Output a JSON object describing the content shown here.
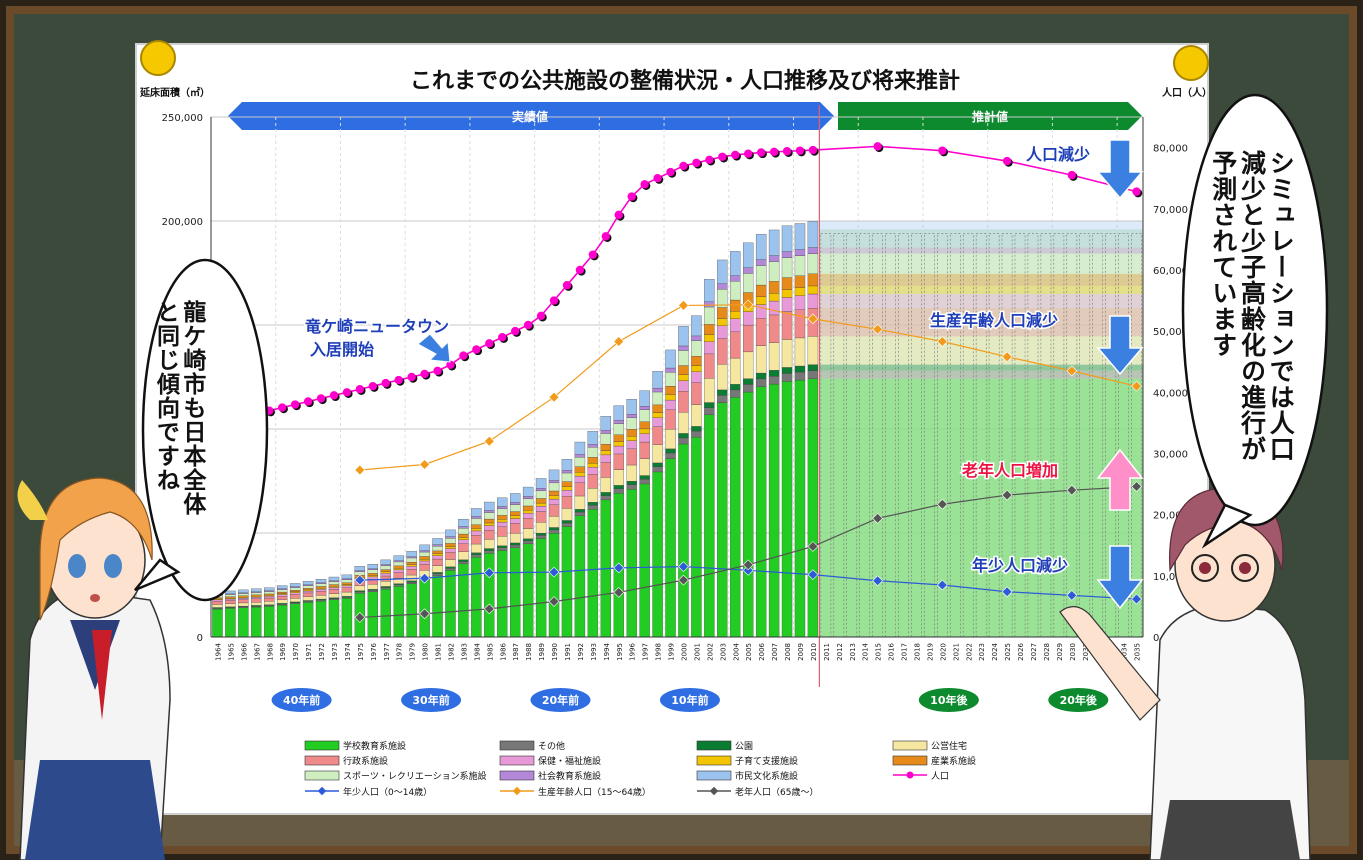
{
  "chart_data": {
    "type": "bar",
    "title": "これまでの公共施設の整備状況・人口推移及び将来推計",
    "y_left_label": "延床面積（㎡）",
    "y_right_label": "人口（人）",
    "y_left_ticks": [
      "0",
      "50,000",
      "100,000",
      "150,000",
      "200,000",
      "250,000"
    ],
    "y_right_ticks": [
      "0",
      "10,000",
      "20,000",
      "30,000",
      "40,000",
      "50,000",
      "60,000",
      "70,000",
      "80,000"
    ],
    "y_left_lim": [
      0,
      250000
    ],
    "y_right_lim": [
      0,
      85000
    ],
    "banner_actual": "実績値",
    "banner_forecast": "推計値",
    "categories": [
      "1964",
      "1965",
      "1966",
      "1967",
      "1968",
      "1969",
      "1970",
      "1971",
      "1972",
      "1973",
      "1974",
      "1975",
      "1976",
      "1977",
      "1978",
      "1979",
      "1980",
      "1981",
      "1982",
      "1983",
      "1984",
      "1985",
      "1986",
      "1987",
      "1988",
      "1989",
      "1990",
      "1991",
      "1992",
      "1993",
      "1994",
      "1995",
      "1996",
      "1997",
      "1998",
      "1999",
      "2000",
      "2001",
      "2002",
      "2003",
      "2004",
      "2005",
      "2006",
      "2007",
      "2008",
      "2009",
      "2010",
      "2011",
      "2012",
      "2013",
      "2014",
      "2015",
      "2016",
      "2017",
      "2018",
      "2019",
      "2020",
      "2021",
      "2022",
      "2023",
      "2024",
      "2025",
      "2026",
      "2027",
      "2028",
      "2029",
      "2030",
      "2031",
      "2032",
      "2033",
      "2034",
      "2035"
    ],
    "stack_series": [
      {
        "name": "学校教育系施設",
        "color": "#22cc22",
        "values": [
          0,
          0,
          0,
          0,
          0,
          0,
          0,
          0,
          0,
          0,
          0,
          0,
          0,
          0,
          0,
          0,
          0,
          0,
          0,
          0,
          0,
          0,
          0,
          0,
          0,
          0,
          0,
          0,
          0,
          0,
          0,
          0,
          0,
          0,
          0,
          0,
          0,
          0,
          0,
          0,
          0,
          0,
          0,
          0,
          0,
          0,
          0
        ]
      },
      {
        "name": "その他",
        "color": "#777777"
      },
      {
        "name": "公園",
        "color": "#0a7d33"
      },
      {
        "name": "公営住宅",
        "color": "#f5e6a0"
      },
      {
        "name": "行政系施設",
        "color": "#f08a8a"
      },
      {
        "name": "保健・福祉施設",
        "color": "#e89ad8"
      },
      {
        "name": "子育て支援施設",
        "color": "#f3c400"
      },
      {
        "name": "産業系施設",
        "color": "#e68a1a"
      },
      {
        "name": "スポーツ・レクリエーション系施設",
        "color": "#cfeec0"
      },
      {
        "name": "社会教育系施設",
        "color": "#b488d8"
      },
      {
        "name": "市民文化系施設",
        "color": "#9cc3ee"
      }
    ],
    "bar_totals": [
      21000,
      21500,
      22000,
      22500,
      23000,
      24000,
      25000,
      26000,
      27000,
      28000,
      29000,
      33000,
      34000,
      36000,
      38000,
      40000,
      43000,
      46000,
      50000,
      55000,
      60000,
      63000,
      65000,
      67000,
      70000,
      74000,
      78000,
      83000,
      91000,
      96000,
      103000,
      108000,
      111000,
      115000,
      124000,
      134000,
      145000,
      150000,
      167000,
      176000,
      180000,
      184000,
      188000,
      190000,
      192000,
      193000,
      194000
    ],
    "bar_totals_note": "",
    "line_series": [
      {
        "name": "人口",
        "color": "#ff00cc",
        "x": [
          1964,
          1965,
          1966,
          1967,
          1968,
          1969,
          1970,
          1971,
          1972,
          1973,
          1974,
          1975,
          1976,
          1977,
          1978,
          1979,
          1980,
          1981,
          1982,
          1983,
          1984,
          1985,
          1986,
          1987,
          1988,
          1989,
          1990,
          1991,
          1992,
          1993,
          1994,
          1995,
          1996,
          1997,
          1998,
          1999,
          2000,
          2001,
          2002,
          2003,
          2004,
          2005,
          2006,
          2007,
          2008,
          2009,
          2010,
          2015,
          2020,
          2025,
          2030,
          2035
        ],
        "values": [
          34500,
          35500,
          36000,
          36500,
          37000,
          37500,
          38000,
          38500,
          39000,
          39500,
          40000,
          40500,
          41000,
          41500,
          42000,
          42500,
          43000,
          43500,
          44500,
          46000,
          47000,
          48000,
          49000,
          50000,
          51000,
          52500,
          55000,
          57500,
          60000,
          62500,
          65500,
          69000,
          72000,
          74000,
          75000,
          76000,
          77000,
          77500,
          78000,
          78500,
          78800,
          79000,
          79200,
          79300,
          79400,
          79500,
          79600,
          80200,
          79500,
          77800,
          75500,
          72800
        ]
      },
      {
        "name": "年少人口（0〜14歳）",
        "color": "#2d5bd8",
        "x": [
          1975,
          1980,
          1985,
          1990,
          1995,
          2000,
          2005,
          2010,
          2015,
          2020,
          2025,
          2030,
          2035
        ],
        "values": [
          9300,
          9600,
          10500,
          10600,
          11300,
          11500,
          10900,
          10200,
          9200,
          8500,
          7400,
          6800,
          6200
        ]
      },
      {
        "name": "生産年齢人口（15〜64歳）",
        "color": "#f29b1a",
        "x": [
          1975,
          1980,
          1985,
          1990,
          1995,
          2000,
          2005,
          2010,
          2015,
          2020,
          2025,
          2030,
          2035
        ],
        "values": [
          27300,
          28200,
          32000,
          39200,
          48300,
          54200,
          54300,
          52000,
          50300,
          48300,
          45800,
          43500,
          41000
        ]
      },
      {
        "name": "老年人口（65歳〜）",
        "color": "#555555",
        "x": [
          1975,
          1980,
          1985,
          1990,
          1995,
          2000,
          2005,
          2010,
          2015,
          2020,
          2025,
          2030,
          2035
        ],
        "values": [
          3200,
          3800,
          4600,
          5800,
          7300,
          9300,
          11800,
          14800,
          19400,
          21700,
          23200,
          24000,
          24600
        ]
      }
    ],
    "forecast_start_year": 2011,
    "era_labels": [
      {
        "text": "40年前",
        "year": 1970.5
      },
      {
        "text": "30年前",
        "year": 1980.5
      },
      {
        "text": "20年前",
        "year": 1990.5
      },
      {
        "text": "10年前",
        "year": 2000.5
      },
      {
        "text": "10年後",
        "year": 2020.5
      },
      {
        "text": "20年後",
        "year": 2030.5
      }
    ],
    "legend": [
      "学校教育系施設",
      "その他",
      "公園",
      "公営住宅",
      "行政系施設",
      "保健・福祉施設",
      "子育て支援施設",
      "産業系施設",
      "スポーツ・レクリエーション系施設",
      "社会教育系施設",
      "市民文化系施設",
      "人口",
      "年少人口（0〜14歳）",
      "生産年齢人口（15〜64歳）",
      "老年人口（65歳〜）"
    ],
    "legend_placement": "bottom",
    "grid": true
  },
  "annotations": {
    "new_town": [
      "竜ケ崎ニュータウン",
      "入居開始"
    ],
    "pop_down": "人口減少",
    "working_down": "生産年齢人口減少",
    "elder_up": "老年人口増加",
    "youth_down": "年少人口減少"
  },
  "bubbles": {
    "left": "龍ケ崎市も日本全体と同じ傾向ですね",
    "right": "シミュレーションでは人口減少と少子高齢化の進行が予測されています"
  },
  "colors": {
    "board": "#3d4a3c",
    "frame": "#5a3c22",
    "actual_banner": "#2f6de2",
    "forecast_banner": "#0d8a2e",
    "arrow_down": "#3b7fe0",
    "arrow_up": "#ff8fc8",
    "pin": "#f6c800"
  }
}
